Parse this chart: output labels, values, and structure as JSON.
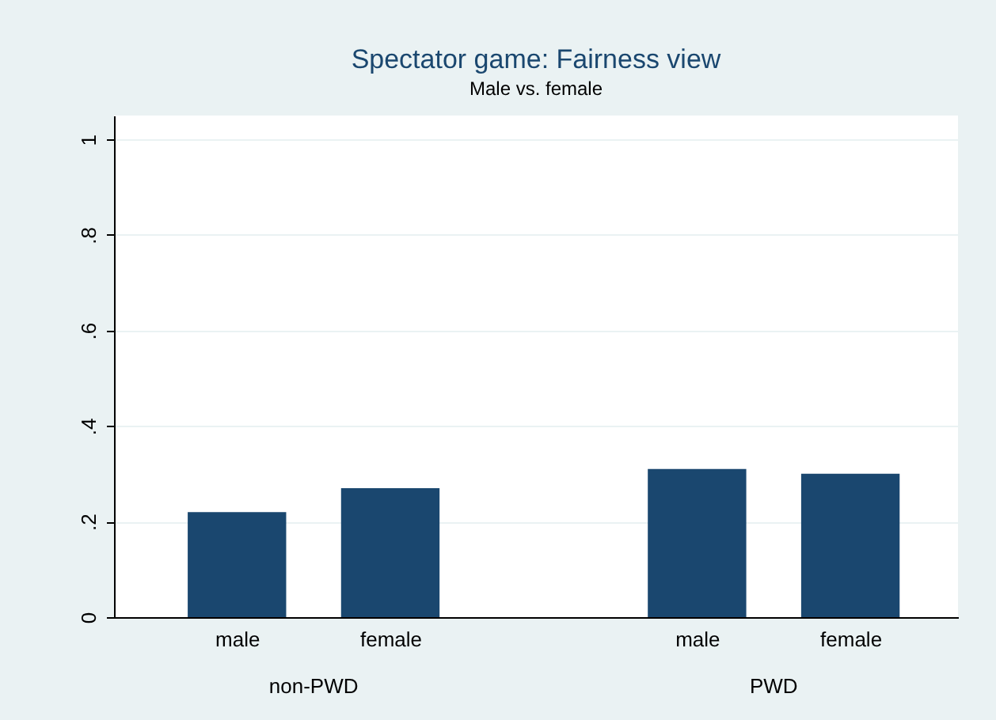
{
  "chart_data": {
    "type": "bar",
    "title": "Spectator game: Fairness view",
    "subtitle": "Male vs. female",
    "categories": [
      "male",
      "female",
      "male",
      "female"
    ],
    "values": [
      0.22,
      0.27,
      0.31,
      0.3
    ],
    "color": "#1a476f",
    "ylim": [
      0,
      1.05
    ],
    "yticks": [
      0,
      {
        "value": 0.2,
        "label": ".2"
      },
      {
        "value": 0.4,
        "label": ".4"
      },
      {
        "value": 0.6,
        "label": ".6"
      },
      {
        "value": 0.8,
        "label": ".8"
      },
      1
    ],
    "grid": "y",
    "annotations": [
      "non-PWD",
      "PWD"
    ]
  }
}
